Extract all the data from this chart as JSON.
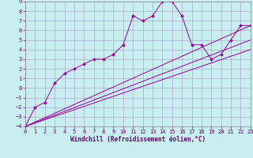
{
  "xlabel": "Windchill (Refroidissement éolien,°C)",
  "bg_color": "#c8eef0",
  "grid_color": "#aaaacc",
  "line_color": "#990099",
  "xmin": 0,
  "xmax": 23,
  "ymin": -4,
  "ymax": 9,
  "x_ticks": [
    0,
    1,
    2,
    3,
    4,
    5,
    6,
    7,
    8,
    9,
    10,
    11,
    12,
    13,
    14,
    15,
    16,
    17,
    18,
    19,
    20,
    21,
    22,
    23
  ],
  "y_ticks": [
    -4,
    -3,
    -2,
    -1,
    0,
    1,
    2,
    3,
    4,
    5,
    6,
    7,
    8,
    9
  ],
  "curve1_x": [
    0,
    1,
    2,
    3,
    4,
    5,
    6,
    7,
    8,
    9,
    10,
    11,
    12,
    13,
    14,
    15,
    16,
    17,
    18,
    19,
    20,
    21,
    22,
    23
  ],
  "curve1_y": [
    -4,
    -2,
    -1.5,
    0.5,
    1.5,
    2,
    2.5,
    3,
    3,
    3.5,
    4.5,
    7.5,
    7,
    7.5,
    9,
    9,
    7.5,
    4.5,
    4.5,
    3,
    3.5,
    5,
    6.5,
    6.5
  ],
  "line1_x": [
    0,
    23
  ],
  "line1_y": [
    -4,
    6.5
  ],
  "line2_x": [
    0,
    23
  ],
  "line2_y": [
    -4,
    5.0
  ],
  "line3_x": [
    0,
    23
  ],
  "line3_y": [
    -4,
    4.0
  ]
}
